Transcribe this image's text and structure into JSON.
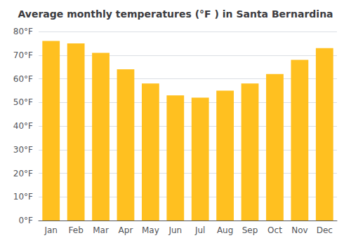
{
  "chart_data": {
    "type": "bar",
    "title": "Average monthly temperatures (°F ) in Santa Bernardina",
    "categories": [
      "Jan",
      "Feb",
      "Mar",
      "Apr",
      "May",
      "Jun",
      "Jul",
      "Aug",
      "Sep",
      "Oct",
      "Nov",
      "Dec"
    ],
    "values": [
      76,
      75,
      71,
      64,
      58,
      53,
      52,
      55,
      58,
      62,
      68,
      73
    ],
    "color": "#FFC020",
    "ylim": [
      0,
      80
    ],
    "yticks": [
      {
        "value": 0,
        "label": "0°F"
      },
      {
        "value": 10,
        "label": "10°F"
      },
      {
        "value": 20,
        "label": "20°F"
      },
      {
        "value": 30,
        "label": "30°F"
      },
      {
        "value": 40,
        "label": "40°F"
      },
      {
        "value": 50,
        "label": "50°F"
      },
      {
        "value": 60,
        "label": "60°F"
      },
      {
        "value": 70,
        "label": "70°F"
      },
      {
        "value": 80,
        "label": "80°F"
      }
    ],
    "grid": true
  }
}
